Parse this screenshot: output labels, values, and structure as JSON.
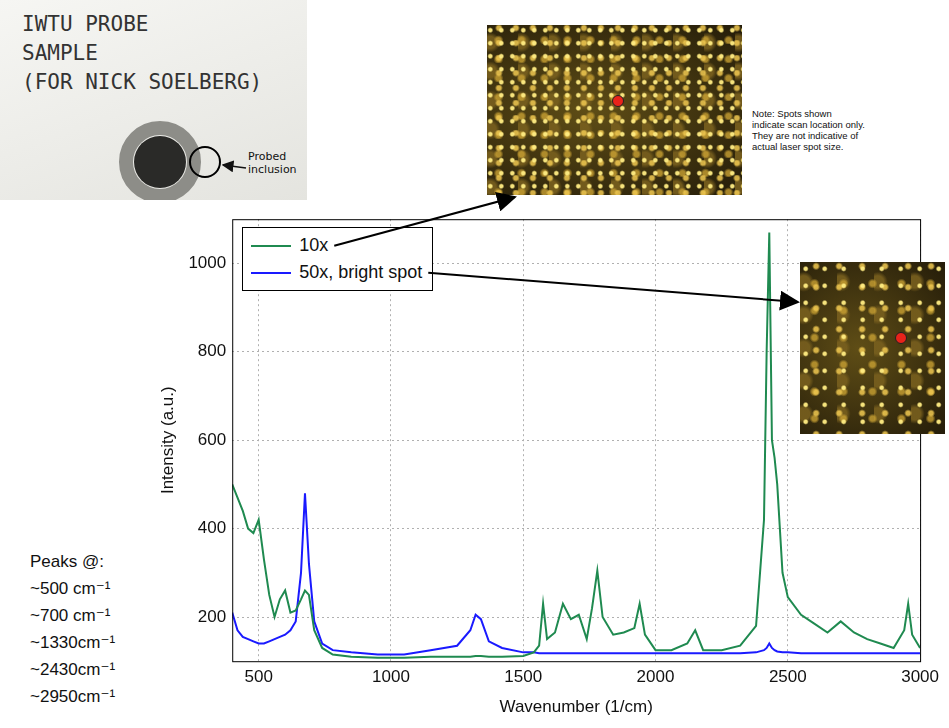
{
  "chart_data": {
    "type": "line",
    "xlabel": "Wavenumber (1/cm)",
    "ylabel": "Intensity (a.u.)",
    "x": [
      400,
      420,
      440,
      460,
      480,
      500,
      520,
      540,
      560,
      580,
      600,
      620,
      640,
      660,
      675,
      690,
      710,
      740,
      780,
      850,
      950,
      1050,
      1150,
      1250,
      1300,
      1320,
      1340,
      1370,
      1420,
      1500,
      1540,
      1560,
      1575,
      1590,
      1620,
      1650,
      1680,
      1710,
      1740,
      1760,
      1780,
      1800,
      1840,
      1880,
      1920,
      1940,
      1960,
      2000,
      2060,
      2120,
      2150,
      2180,
      2250,
      2320,
      2380,
      2410,
      2420,
      2430,
      2440,
      2450,
      2460,
      2480,
      2500,
      2550,
      2600,
      2650,
      2700,
      2750,
      2800,
      2850,
      2900,
      2940,
      2955,
      2970,
      3000
    ],
    "series": [
      {
        "name": "10x",
        "color": "#1f8a50",
        "values": [
          500,
          470,
          440,
          400,
          390,
          420,
          330,
          250,
          200,
          240,
          260,
          210,
          215,
          240,
          260,
          250,
          170,
          130,
          115,
          110,
          108,
          108,
          110,
          110,
          110,
          112,
          112,
          110,
          110,
          112,
          120,
          135,
          230,
          150,
          165,
          230,
          195,
          205,
          150,
          220,
          305,
          200,
          160,
          165,
          175,
          230,
          160,
          125,
          125,
          140,
          170,
          125,
          125,
          135,
          180,
          420,
          800,
          1070,
          600,
          560,
          500,
          300,
          245,
          205,
          185,
          165,
          190,
          165,
          150,
          140,
          130,
          170,
          230,
          160,
          130
        ]
      },
      {
        "name": "50x, bright spot",
        "color": "#1a1aff",
        "values": [
          210,
          170,
          155,
          150,
          145,
          140,
          140,
          145,
          150,
          155,
          160,
          170,
          190,
          300,
          480,
          320,
          190,
          140,
          125,
          120,
          115,
          115,
          125,
          135,
          170,
          205,
          195,
          145,
          130,
          120,
          120,
          118,
          118,
          118,
          118,
          118,
          118,
          118,
          118,
          118,
          118,
          118,
          118,
          118,
          118,
          118,
          118,
          118,
          118,
          118,
          118,
          118,
          118,
          118,
          120,
          125,
          130,
          140,
          130,
          125,
          122,
          120,
          120,
          118,
          118,
          118,
          118,
          118,
          118,
          118,
          118,
          118,
          118,
          118,
          118
        ]
      }
    ],
    "xlim": [
      400,
      3000
    ],
    "xticks": [
      500,
      1000,
      1500,
      2000,
      2500,
      3000
    ],
    "ylim": [
      100,
      1100
    ],
    "yticks": [
      200,
      400,
      600,
      800,
      1000
    ],
    "grid": true,
    "legend": "upper left",
    "annotations": {
      "sample_label": [
        "IWTU PROBE",
        "SAMPLE",
        "(FOR NICK SOELBERG)"
      ],
      "inclusion_label": "Probed inclusion",
      "note": "Note: Spots shown indicate scan location only. They are not indicative of actual laser spot size.",
      "peaks_title": "Peaks @:",
      "peaks": [
        "~500 cm⁻¹",
        "~700 cm⁻¹",
        "~1330cm⁻¹",
        "~2430cm⁻¹",
        "~2950cm⁻¹"
      ]
    }
  }
}
